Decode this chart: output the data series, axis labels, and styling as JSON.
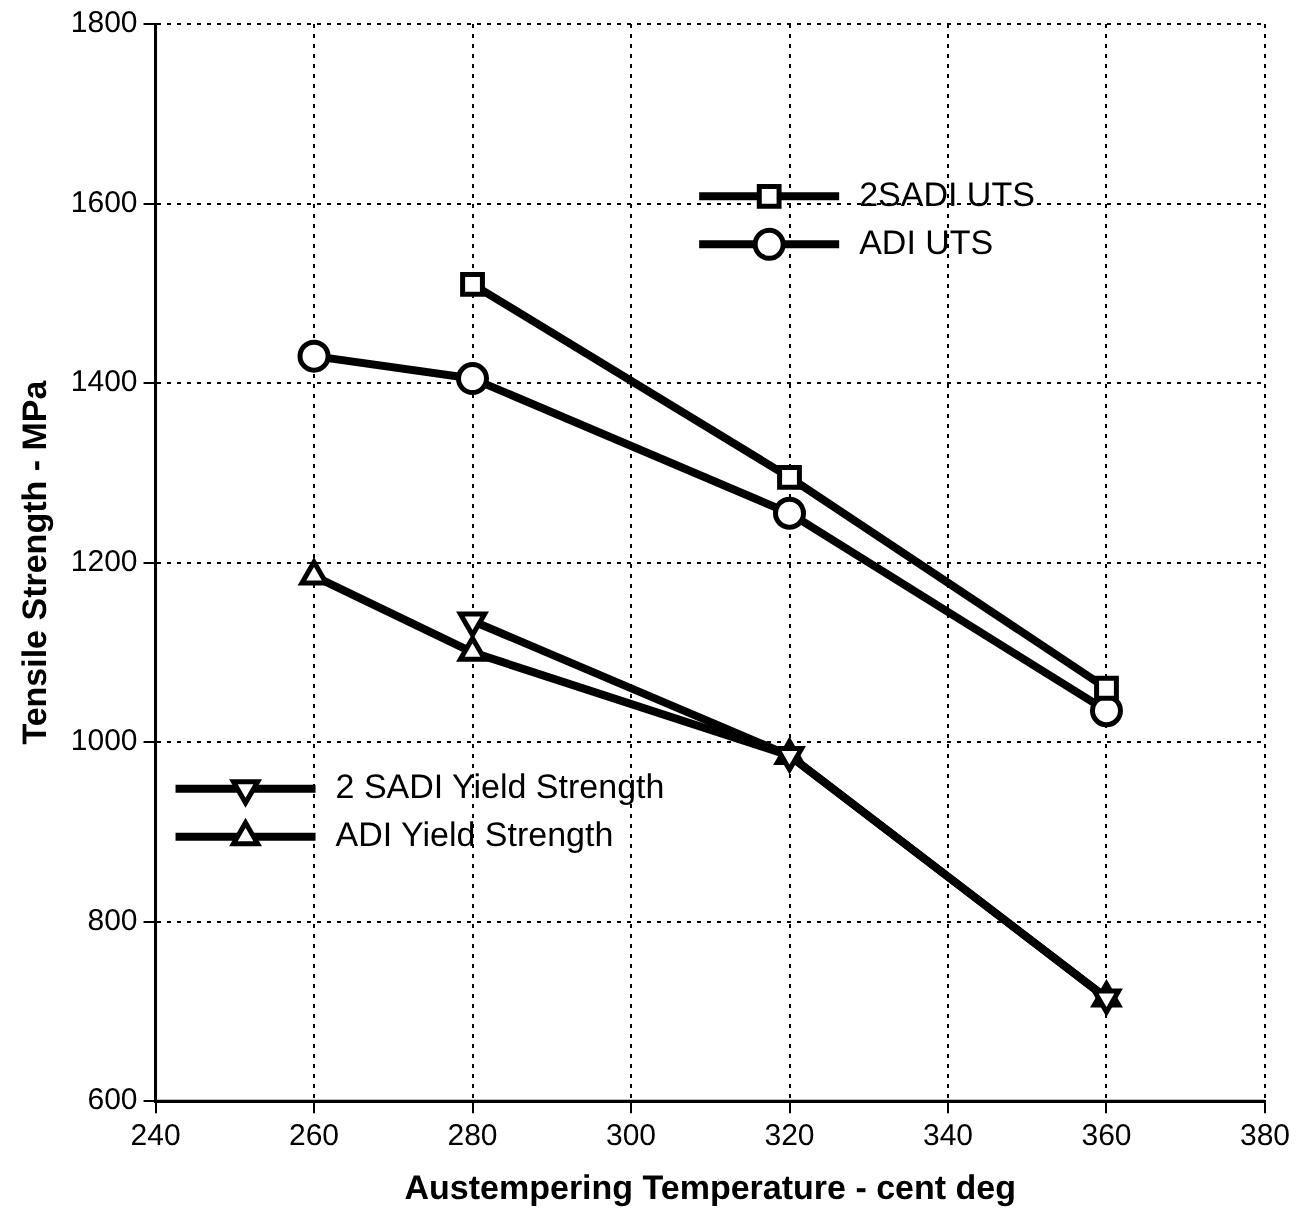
{
  "chart_data": {
    "type": "line",
    "xlabel": "Austempering Temperature - cent deg",
    "ylabel": "Tensile Strength - MPa",
    "xlim": [
      240,
      380
    ],
    "xticks": [
      240,
      260,
      280,
      300,
      320,
      340,
      360,
      380
    ],
    "ylim": [
      600,
      1800
    ],
    "yticks": [
      600,
      800,
      1000,
      1200,
      1400,
      1600,
      1800
    ],
    "grid": true,
    "legend": "top left",
    "line_style": "solid",
    "series": [
      {
        "name": "2SADI UTS",
        "color": "#000000",
        "marker": "square",
        "x": [
          280,
          320,
          360
        ],
        "values": [
          1510,
          1295,
          1060
        ]
      },
      {
        "name": "ADI UTS",
        "color": "#000000",
        "marker": "circle",
        "x": [
          260,
          280,
          320,
          360
        ],
        "values": [
          1430,
          1405,
          1255,
          1035
        ]
      },
      {
        "name": "2 SADI Yield Strength",
        "color": "#000000",
        "marker": "triangle-down",
        "x": [
          280,
          320,
          360
        ],
        "values": [
          1135,
          985,
          715
        ]
      },
      {
        "name": "ADI Yield Strength",
        "color": "#000000",
        "marker": "triangle",
        "x": [
          260,
          280,
          320,
          360
        ],
        "values": [
          1185,
          1100,
          985,
          715
        ]
      }
    ]
  }
}
